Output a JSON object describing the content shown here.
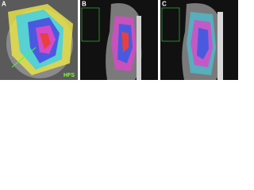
{
  "panels": [
    {
      "label": "A",
      "annotation": "HFS"
    },
    {
      "label": "B"
    },
    {
      "label": "C"
    }
  ]
}
